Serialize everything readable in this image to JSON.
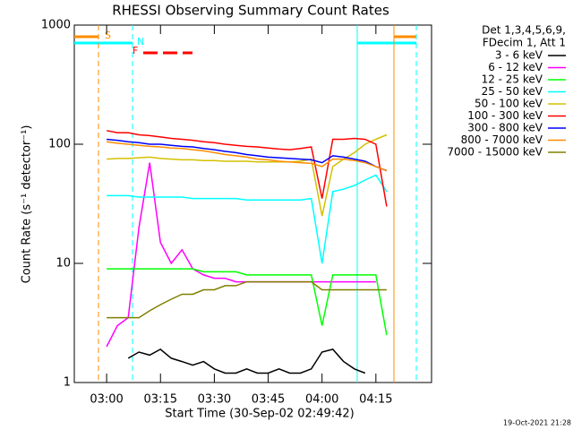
{
  "chart_data": {
    "type": "line",
    "title": "RHESSI Observing Summary Count Rates",
    "xlabel": "Start Time (30-Sep-02 02:49:42)",
    "ylabel": "Count Rate (s⁻¹ detector⁻¹)",
    "legend_title": [
      "Det 1,3,4,5,6,9,",
      "FDecim 1, Att 1"
    ],
    "annotations": [
      "S",
      "N",
      "F"
    ],
    "footer": "19-Oct-2021 21:28",
    "log_y": true,
    "legend": "right",
    "xlim": [
      171,
      270.5
    ],
    "xticks": [
      {
        "value": 180,
        "label": "03:00"
      },
      {
        "value": 195,
        "label": "03:15"
      },
      {
        "value": 210,
        "label": "03:30"
      },
      {
        "value": 225,
        "label": "03:45"
      },
      {
        "value": 240,
        "label": "04:00"
      },
      {
        "value": 255,
        "label": "04:15"
      }
    ],
    "ylim": [
      1,
      1000
    ],
    "yticks": [
      1,
      10,
      100,
      1000
    ],
    "x": [
      180,
      183,
      186,
      189,
      192,
      195,
      198,
      201,
      204,
      207,
      210,
      213,
      216,
      219,
      222,
      225,
      228,
      231,
      234,
      237,
      240,
      243,
      246,
      249,
      252,
      255,
      258
    ],
    "series": [
      {
        "name": "3 - 6 keV",
        "color": "#000000",
        "values": [
          null,
          null,
          1.6,
          1.8,
          1.7,
          1.9,
          1.6,
          1.5,
          1.4,
          1.5,
          1.3,
          1.2,
          1.2,
          1.3,
          1.2,
          1.2,
          1.3,
          1.2,
          1.2,
          1.3,
          1.8,
          1.9,
          1.5,
          1.3,
          1.2,
          null,
          null
        ]
      },
      {
        "name": "6 - 12 keV",
        "color": "#ff00ff",
        "values": [
          2,
          3,
          3.5,
          20,
          70,
          15,
          10,
          13,
          9,
          8,
          7.5,
          7.5,
          7,
          7,
          7,
          7,
          7,
          7,
          7,
          7,
          7,
          7,
          7,
          7,
          7,
          7,
          null
        ]
      },
      {
        "name": "12 - 25 keV",
        "color": "#00ff00",
        "values": [
          9,
          9,
          9,
          9,
          9,
          9,
          9,
          9,
          9,
          8.5,
          8.5,
          8.5,
          8.5,
          8,
          8,
          8,
          8,
          8,
          8,
          8,
          3,
          8,
          8,
          8,
          8,
          8,
          2.5
        ]
      },
      {
        "name": "25 - 50 keV",
        "color": "#00ffff",
        "values": [
          37,
          37,
          37,
          36,
          36,
          36,
          36,
          36,
          35,
          35,
          35,
          35,
          35,
          34,
          34,
          34,
          34,
          34,
          34,
          35,
          10,
          40,
          42,
          45,
          50,
          55,
          40
        ]
      },
      {
        "name": "50 - 100 keV",
        "color": "#d4c000",
        "values": [
          75,
          76,
          76,
          77,
          78,
          76,
          75,
          74,
          74,
          73,
          73,
          72,
          72,
          72,
          71,
          71,
          71,
          71,
          72,
          75,
          25,
          65,
          75,
          85,
          100,
          110,
          120
        ]
      },
      {
        "name": "100 - 300 keV",
        "color": "#ff0000",
        "values": [
          130,
          125,
          125,
          120,
          118,
          115,
          112,
          110,
          108,
          105,
          103,
          100,
          98,
          96,
          95,
          93,
          91,
          90,
          92,
          95,
          35,
          110,
          110,
          112,
          110,
          100,
          30
        ]
      },
      {
        "name": "300 - 800 keV",
        "color": "#0000ff",
        "values": [
          110,
          108,
          105,
          103,
          100,
          100,
          98,
          96,
          95,
          92,
          90,
          87,
          85,
          82,
          80,
          78,
          77,
          76,
          75,
          74,
          70,
          80,
          78,
          75,
          72,
          65,
          60
        ]
      },
      {
        "name": "800 - 7000 keV",
        "color": "#ff8c00",
        "values": [
          105,
          102,
          100,
          98,
          96,
          95,
          93,
          92,
          90,
          88,
          85,
          82,
          80,
          78,
          75,
          74,
          72,
          71,
          70,
          69,
          65,
          75,
          75,
          73,
          70,
          65,
          60
        ]
      },
      {
        "name": "7000 - 15000 keV",
        "color": "#808000",
        "values": [
          3.5,
          3.5,
          3.5,
          3.5,
          4,
          4.5,
          5,
          5.5,
          5.5,
          6,
          6,
          6.5,
          6.5,
          7,
          7,
          7,
          7,
          7,
          7,
          7,
          6,
          6,
          6,
          6,
          6,
          6,
          6
        ]
      }
    ]
  }
}
